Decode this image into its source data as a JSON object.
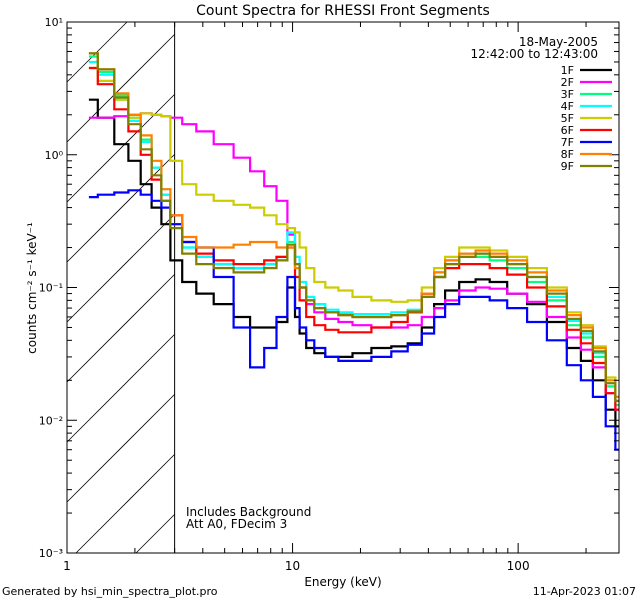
{
  "chart_data": {
    "type": "line",
    "title": "Count Spectra for RHESSI Front Segments",
    "xlabel": "Energy (keV)",
    "ylabel": "counts cm⁻² s⁻¹ keV⁻¹",
    "xscale": "log",
    "yscale": "log",
    "xlim": [
      1,
      280
    ],
    "ylim": [
      0.001,
      10
    ],
    "x_ticks": [
      {
        "value": 1,
        "label": "1"
      },
      {
        "value": 10,
        "label": "10"
      },
      {
        "value": 100,
        "label": "100"
      }
    ],
    "y_ticks": [
      {
        "value": 0.001,
        "label": "10⁻³"
      },
      {
        "value": 0.01,
        "label": "10⁻²"
      },
      {
        "value": 0.1,
        "label": "10⁻¹"
      },
      {
        "value": 1,
        "label": "10⁰"
      },
      {
        "value": 10,
        "label": "10¹"
      }
    ],
    "shaded_region": {
      "x_min": 1,
      "x_max": 3,
      "pattern": "diagonal hatch"
    },
    "date": "18-May-2005",
    "time_range": "12:42:00 to 12:43:00",
    "annotations": [
      "Includes Background",
      "Att A0, FDecim 3"
    ],
    "footer_left": "Generated by hsi_min_spectra_plot.pro",
    "footer_right": "11-Apr-2023 01:07",
    "x": [
      1.25,
      1.5,
      1.75,
      2.0,
      2.25,
      2.5,
      2.75,
      3.0,
      3.5,
      4.0,
      5.0,
      6.0,
      7.0,
      8.0,
      9.0,
      10.0,
      10.5,
      11.0,
      12.0,
      13.0,
      15.0,
      17.0,
      20.0,
      25.0,
      30.0,
      35.0,
      40.0,
      45.0,
      50.0,
      60.0,
      70.0,
      80.0,
      100.0,
      120.0,
      150.0,
      180.0,
      200.0,
      230.0,
      260.0,
      280.0
    ],
    "series": [
      {
        "name": "1F",
        "color": "#000000",
        "values": [
          2.6,
          1.9,
          1.2,
          0.9,
          0.6,
          0.4,
          0.3,
          0.16,
          0.11,
          0.09,
          0.075,
          0.06,
          0.05,
          0.05,
          0.055,
          0.1,
          0.06,
          0.045,
          0.035,
          0.032,
          0.03,
          0.03,
          0.032,
          0.035,
          0.036,
          0.038,
          0.05,
          0.075,
          0.095,
          0.11,
          0.115,
          0.11,
          0.09,
          0.075,
          0.055,
          0.035,
          0.028,
          0.02,
          0.012,
          0.009
        ]
      },
      {
        "name": "2F",
        "color": "#ff00ff",
        "values": [
          1.9,
          1.9,
          1.95,
          2.0,
          2.05,
          2.0,
          1.95,
          1.9,
          1.7,
          1.5,
          1.2,
          0.95,
          0.75,
          0.58,
          0.45,
          0.25,
          0.15,
          0.1,
          0.075,
          0.065,
          0.058,
          0.055,
          0.052,
          0.05,
          0.05,
          0.052,
          0.06,
          0.07,
          0.08,
          0.095,
          0.1,
          0.098,
          0.09,
          0.078,
          0.06,
          0.042,
          0.034,
          0.025,
          0.016,
          0.012
        ]
      },
      {
        "name": "3F",
        "color": "#00ff7f",
        "values": [
          5.5,
          4.2,
          2.8,
          1.9,
          1.3,
          0.8,
          0.5,
          0.3,
          0.2,
          0.17,
          0.15,
          0.14,
          0.14,
          0.15,
          0.16,
          0.22,
          0.15,
          0.1,
          0.08,
          0.07,
          0.065,
          0.063,
          0.06,
          0.06,
          0.062,
          0.065,
          0.085,
          0.12,
          0.15,
          0.17,
          0.17,
          0.16,
          0.14,
          0.11,
          0.08,
          0.052,
          0.042,
          0.03,
          0.018,
          0.013
        ]
      },
      {
        "name": "4F",
        "color": "#00ffff",
        "values": [
          5.0,
          4.0,
          2.6,
          1.8,
          1.25,
          0.8,
          0.5,
          0.3,
          0.2,
          0.17,
          0.15,
          0.14,
          0.14,
          0.15,
          0.17,
          0.26,
          0.17,
          0.11,
          0.085,
          0.075,
          0.068,
          0.065,
          0.063,
          0.063,
          0.065,
          0.068,
          0.09,
          0.13,
          0.16,
          0.18,
          0.18,
          0.17,
          0.15,
          0.12,
          0.085,
          0.056,
          0.045,
          0.032,
          0.019,
          0.014
        ]
      },
      {
        "name": "5F",
        "color": "#cccc00",
        "values": [
          4.5,
          3.6,
          2.6,
          1.9,
          2.05,
          2.0,
          1.95,
          0.9,
          0.6,
          0.5,
          0.45,
          0.42,
          0.4,
          0.35,
          0.3,
          0.28,
          0.26,
          0.2,
          0.14,
          0.11,
          0.1,
          0.095,
          0.085,
          0.08,
          0.078,
          0.08,
          0.1,
          0.14,
          0.17,
          0.2,
          0.2,
          0.19,
          0.17,
          0.14,
          0.1,
          0.065,
          0.052,
          0.036,
          0.021,
          0.015
        ]
      },
      {
        "name": "6F",
        "color": "#ff0000",
        "values": [
          4.5,
          3.4,
          2.2,
          1.5,
          1.0,
          0.65,
          0.45,
          0.35,
          0.22,
          0.18,
          0.16,
          0.15,
          0.15,
          0.16,
          0.17,
          0.2,
          0.12,
          0.08,
          0.06,
          0.052,
          0.048,
          0.046,
          0.046,
          0.05,
          0.055,
          0.065,
          0.09,
          0.12,
          0.14,
          0.15,
          0.15,
          0.14,
          0.125,
          0.1,
          0.072,
          0.048,
          0.038,
          0.027,
          0.016,
          0.012
        ]
      },
      {
        "name": "7F",
        "color": "#0000ff",
        "values": [
          0.48,
          0.5,
          0.52,
          0.54,
          0.5,
          0.45,
          0.4,
          0.3,
          0.22,
          0.2,
          0.12,
          0.05,
          0.025,
          0.035,
          0.06,
          0.12,
          0.07,
          0.05,
          0.04,
          0.035,
          0.03,
          0.028,
          0.028,
          0.03,
          0.033,
          0.037,
          0.045,
          0.06,
          0.075,
          0.085,
          0.085,
          0.08,
          0.07,
          0.055,
          0.04,
          0.026,
          0.02,
          0.015,
          0.009,
          0.006
        ]
      },
      {
        "name": "8F",
        "color": "#ff7f00",
        "values": [
          5.8,
          4.4,
          2.9,
          2.0,
          1.4,
          0.9,
          0.55,
          0.35,
          0.24,
          0.2,
          0.2,
          0.21,
          0.22,
          0.22,
          0.2,
          0.2,
          0.14,
          0.1,
          0.08,
          0.07,
          0.065,
          0.062,
          0.06,
          0.06,
          0.062,
          0.066,
          0.09,
          0.13,
          0.16,
          0.18,
          0.19,
          0.18,
          0.16,
          0.13,
          0.095,
          0.062,
          0.05,
          0.035,
          0.02,
          0.015
        ]
      },
      {
        "name": "9F",
        "color": "#808000",
        "values": [
          5.8,
          4.4,
          2.7,
          1.7,
          1.1,
          0.7,
          0.45,
          0.28,
          0.18,
          0.15,
          0.14,
          0.13,
          0.13,
          0.14,
          0.16,
          0.21,
          0.15,
          0.1,
          0.08,
          0.07,
          0.065,
          0.062,
          0.06,
          0.06,
          0.062,
          0.066,
          0.085,
          0.12,
          0.15,
          0.17,
          0.18,
          0.17,
          0.15,
          0.12,
          0.09,
          0.058,
          0.047,
          0.033,
          0.019,
          0.014
        ]
      }
    ]
  }
}
